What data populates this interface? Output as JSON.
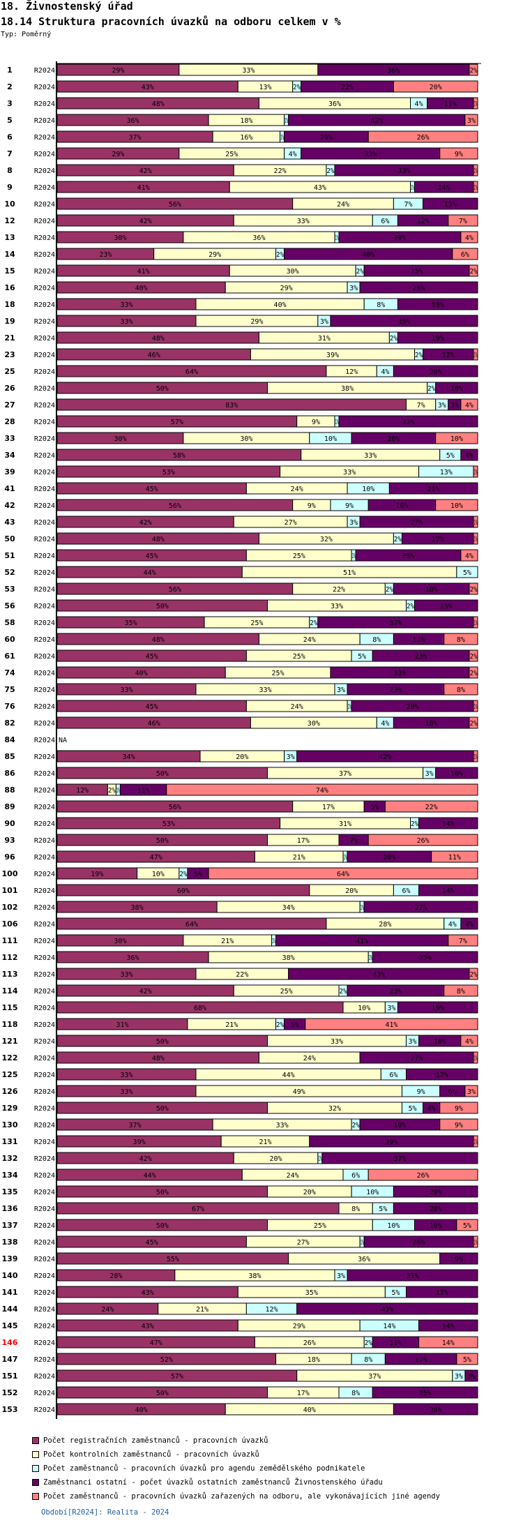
{
  "header": {
    "title": "18. Živnostenský úřad",
    "subtitle": "18.14 Struktura pracovních úvazků na odboru celkem v %",
    "type_label": "Typ: Poměrný"
  },
  "footer": {
    "period": "Období[R2024]: Realita - 2024"
  },
  "colors": {
    "registracni": "#993366",
    "kontrolni": "#FFFFCC",
    "zemedelsky": "#CCFFFF",
    "ostatni": "#660066",
    "jine": "#FF8080",
    "highlight_label": "#FF0000"
  },
  "chart_data": {
    "type": "bar",
    "orientation": "horizontal-stacked-100",
    "title": "18.14 Struktura pracovních úvazků na odboru celkem v %",
    "xlabel": "",
    "ylabel": "",
    "xlim": [
      0,
      100
    ],
    "unit": "%",
    "legend_position": "bottom",
    "period_label": "R2024",
    "highlighted_category": "146",
    "series": [
      {
        "key": "registracni",
        "name": "Počet registračních zaměstnanců - pracovních úvazků"
      },
      {
        "key": "kontrolni",
        "name": "Počet kontrolních zaměstnanců - pracovních úvazků"
      },
      {
        "key": "zemedelsky",
        "name": "Počet zaměstnanců - pracovních úvazků pro agendu zemědělského podnikatele"
      },
      {
        "key": "ostatni",
        "name": "Zaměstnanci ostatní - počet úvazků ostatních zaměstnanců Živnostenského úřadu"
      },
      {
        "key": "jine",
        "name": "Počet zaměstnanců - pracovních úvazků zařazených na odboru, ale vykonávajících jiné agendy"
      }
    ],
    "rows": [
      {
        "id": "1",
        "period": "R2024",
        "values": [
          29,
          33,
          0,
          36,
          2
        ]
      },
      {
        "id": "2",
        "period": "R2024",
        "values": [
          43,
          13,
          2,
          22,
          20
        ]
      },
      {
        "id": "3",
        "period": "R2024",
        "values": [
          48,
          36,
          4,
          11,
          1
        ]
      },
      {
        "id": "5",
        "period": "R2024",
        "values": [
          36,
          18,
          1,
          42,
          3
        ]
      },
      {
        "id": "6",
        "period": "R2024",
        "values": [
          37,
          16,
          1,
          20,
          26
        ]
      },
      {
        "id": "7",
        "period": "R2024",
        "values": [
          29,
          25,
          4,
          33,
          9
        ]
      },
      {
        "id": "8",
        "period": "R2024",
        "values": [
          42,
          22,
          2,
          33,
          1
        ]
      },
      {
        "id": "9",
        "period": "R2024",
        "values": [
          41,
          43,
          1,
          14,
          1
        ]
      },
      {
        "id": "10",
        "period": "R2024",
        "values": [
          56,
          24,
          7,
          13,
          0
        ]
      },
      {
        "id": "12",
        "period": "R2024",
        "values": [
          42,
          33,
          6,
          12,
          7
        ]
      },
      {
        "id": "13",
        "period": "R2024",
        "values": [
          30,
          36,
          1,
          29,
          4
        ]
      },
      {
        "id": "14",
        "period": "R2024",
        "values": [
          23,
          29,
          2,
          40,
          6
        ]
      },
      {
        "id": "15",
        "period": "R2024",
        "values": [
          41,
          30,
          2,
          25,
          2
        ]
      },
      {
        "id": "16",
        "period": "R2024",
        "values": [
          40,
          29,
          3,
          28,
          0
        ]
      },
      {
        "id": "18",
        "period": "R2024",
        "values": [
          33,
          40,
          8,
          19,
          0
        ]
      },
      {
        "id": "19",
        "period": "R2024",
        "values": [
          33,
          29,
          3,
          35,
          0
        ]
      },
      {
        "id": "21",
        "period": "R2024",
        "values": [
          48,
          31,
          2,
          19,
          0
        ]
      },
      {
        "id": "23",
        "period": "R2024",
        "values": [
          46,
          39,
          2,
          12,
          1
        ]
      },
      {
        "id": "25",
        "period": "R2024",
        "values": [
          64,
          12,
          4,
          20,
          0
        ]
      },
      {
        "id": "26",
        "period": "R2024",
        "values": [
          50,
          38,
          2,
          10,
          0
        ]
      },
      {
        "id": "27",
        "period": "R2024",
        "values": [
          83,
          7,
          3,
          3,
          4
        ]
      },
      {
        "id": "28",
        "period": "R2024",
        "values": [
          57,
          9,
          1,
          33,
          0
        ]
      },
      {
        "id": "33",
        "period": "R2024",
        "values": [
          30,
          30,
          10,
          20,
          10
        ]
      },
      {
        "id": "34",
        "period": "R2024",
        "values": [
          58,
          33,
          5,
          4,
          0
        ]
      },
      {
        "id": "39",
        "period": "R2024",
        "values": [
          53,
          33,
          13,
          0,
          1
        ]
      },
      {
        "id": "41",
        "period": "R2024",
        "values": [
          45,
          24,
          10,
          21,
          0
        ]
      },
      {
        "id": "42",
        "period": "R2024",
        "values": [
          56,
          9,
          9,
          16,
          10
        ]
      },
      {
        "id": "43",
        "period": "R2024",
        "values": [
          42,
          27,
          3,
          27,
          1
        ]
      },
      {
        "id": "50",
        "period": "R2024",
        "values": [
          48,
          32,
          2,
          17,
          1
        ]
      },
      {
        "id": "51",
        "period": "R2024",
        "values": [
          45,
          25,
          1,
          25,
          4
        ]
      },
      {
        "id": "52",
        "period": "R2024",
        "values": [
          44,
          51,
          5,
          0,
          0
        ]
      },
      {
        "id": "53",
        "period": "R2024",
        "values": [
          56,
          22,
          2,
          18,
          2
        ]
      },
      {
        "id": "56",
        "period": "R2024",
        "values": [
          50,
          33,
          2,
          15,
          0
        ]
      },
      {
        "id": "58",
        "period": "R2024",
        "values": [
          35,
          25,
          2,
          37,
          1
        ]
      },
      {
        "id": "60",
        "period": "R2024",
        "values": [
          48,
          24,
          8,
          12,
          8
        ]
      },
      {
        "id": "61",
        "period": "R2024",
        "values": [
          45,
          25,
          5,
          23,
          2
        ]
      },
      {
        "id": "74",
        "period": "R2024",
        "values": [
          40,
          25,
          0,
          33,
          2
        ]
      },
      {
        "id": "75",
        "period": "R2024",
        "values": [
          33,
          33,
          3,
          23,
          8
        ]
      },
      {
        "id": "76",
        "period": "R2024",
        "values": [
          45,
          24,
          1,
          29,
          1
        ]
      },
      {
        "id": "82",
        "period": "R2024",
        "values": [
          46,
          30,
          4,
          18,
          2
        ]
      },
      {
        "id": "84",
        "period": "R2024",
        "values": null,
        "na_label": "NA"
      },
      {
        "id": "85",
        "period": "R2024",
        "values": [
          34,
          20,
          3,
          42,
          1
        ]
      },
      {
        "id": "86",
        "period": "R2024",
        "values": [
          50,
          37,
          3,
          10,
          0
        ]
      },
      {
        "id": "88",
        "period": "R2024",
        "values": [
          12,
          2,
          1,
          11,
          74
        ]
      },
      {
        "id": "89",
        "period": "R2024",
        "values": [
          56,
          17,
          0,
          5,
          22
        ]
      },
      {
        "id": "90",
        "period": "R2024",
        "values": [
          53,
          31,
          2,
          14,
          0
        ]
      },
      {
        "id": "93",
        "period": "R2024",
        "values": [
          50,
          17,
          0,
          7,
          26
        ]
      },
      {
        "id": "96",
        "period": "R2024",
        "values": [
          47,
          21,
          1,
          20,
          11
        ]
      },
      {
        "id": "100",
        "period": "R2024",
        "values": [
          19,
          10,
          2,
          5,
          64
        ]
      },
      {
        "id": "101",
        "period": "R2024",
        "values": [
          60,
          20,
          6,
          14,
          0
        ]
      },
      {
        "id": "102",
        "period": "R2024",
        "values": [
          38,
          34,
          1,
          27,
          0
        ]
      },
      {
        "id": "106",
        "period": "R2024",
        "values": [
          64,
          28,
          4,
          4,
          0
        ]
      },
      {
        "id": "111",
        "period": "R2024",
        "values": [
          30,
          21,
          1,
          41,
          7
        ]
      },
      {
        "id": "112",
        "period": "R2024",
        "values": [
          36,
          38,
          1,
          25,
          0
        ]
      },
      {
        "id": "113",
        "period": "R2024",
        "values": [
          33,
          22,
          0,
          43,
          2
        ]
      },
      {
        "id": "114",
        "period": "R2024",
        "values": [
          42,
          25,
          2,
          23,
          8
        ]
      },
      {
        "id": "115",
        "period": "R2024",
        "values": [
          68,
          10,
          3,
          19,
          0
        ]
      },
      {
        "id": "118",
        "period": "R2024",
        "values": [
          31,
          21,
          2,
          5,
          41
        ]
      },
      {
        "id": "121",
        "period": "R2024",
        "values": [
          50,
          33,
          3,
          10,
          4
        ]
      },
      {
        "id": "122",
        "period": "R2024",
        "values": [
          48,
          24,
          0,
          27,
          1
        ]
      },
      {
        "id": "125",
        "period": "R2024",
        "values": [
          33,
          44,
          6,
          17,
          0
        ]
      },
      {
        "id": "126",
        "period": "R2024",
        "values": [
          33,
          49,
          9,
          6,
          3
        ]
      },
      {
        "id": "129",
        "period": "R2024",
        "values": [
          50,
          32,
          5,
          4,
          9
        ]
      },
      {
        "id": "130",
        "period": "R2024",
        "values": [
          37,
          33,
          2,
          19,
          9
        ]
      },
      {
        "id": "131",
        "period": "R2024",
        "values": [
          39,
          21,
          0,
          39,
          1
        ]
      },
      {
        "id": "132",
        "period": "R2024",
        "values": [
          42,
          20,
          1,
          37,
          0
        ]
      },
      {
        "id": "134",
        "period": "R2024",
        "values": [
          44,
          24,
          6,
          0,
          26
        ]
      },
      {
        "id": "135",
        "period": "R2024",
        "values": [
          50,
          20,
          10,
          20,
          0
        ]
      },
      {
        "id": "136",
        "period": "R2024",
        "values": [
          67,
          8,
          5,
          20,
          0
        ]
      },
      {
        "id": "137",
        "period": "R2024",
        "values": [
          50,
          25,
          10,
          10,
          5
        ]
      },
      {
        "id": "138",
        "period": "R2024",
        "values": [
          45,
          27,
          1,
          26,
          1
        ]
      },
      {
        "id": "139",
        "period": "R2024",
        "values": [
          55,
          36,
          0,
          9,
          0
        ]
      },
      {
        "id": "140",
        "period": "R2024",
        "values": [
          28,
          38,
          3,
          31,
          0
        ]
      },
      {
        "id": "141",
        "period": "R2024",
        "values": [
          43,
          35,
          5,
          17,
          0
        ]
      },
      {
        "id": "144",
        "period": "R2024",
        "values": [
          24,
          21,
          12,
          43,
          0
        ]
      },
      {
        "id": "145",
        "period": "R2024",
        "values": [
          43,
          29,
          14,
          14,
          0
        ]
      },
      {
        "id": "146",
        "period": "R2024",
        "values": [
          47,
          26,
          2,
          11,
          14
        ]
      },
      {
        "id": "147",
        "period": "R2024",
        "values": [
          52,
          18,
          8,
          17,
          5
        ]
      },
      {
        "id": "151",
        "period": "R2024",
        "values": [
          57,
          37,
          3,
          3,
          0
        ]
      },
      {
        "id": "152",
        "period": "R2024",
        "values": [
          50,
          17,
          8,
          25,
          0
        ]
      },
      {
        "id": "153",
        "period": "R2024",
        "values": [
          40,
          40,
          0,
          20,
          0
        ]
      }
    ]
  }
}
